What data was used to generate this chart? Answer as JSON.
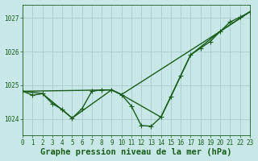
{
  "title": "Graphe pression niveau de la mer (hPa)",
  "bg_color": "#c8e8e8",
  "plot_bg_color": "#c8e8e8",
  "grid_color": "#aacccc",
  "line_color": "#1a5c1a",
  "xlim": [
    0,
    23
  ],
  "ylim": [
    1023.5,
    1027.4
  ],
  "yticks": [
    1024,
    1025,
    1026,
    1027
  ],
  "xticks": [
    0,
    1,
    2,
    3,
    4,
    5,
    6,
    7,
    8,
    9,
    10,
    11,
    12,
    13,
    14,
    15,
    16,
    17,
    18,
    19,
    20,
    21,
    22,
    23
  ],
  "line1_x": [
    0,
    1,
    2,
    3,
    4,
    5,
    6,
    7,
    8,
    9,
    10,
    11,
    12,
    13,
    14,
    15,
    16,
    17,
    18,
    19,
    20,
    21,
    22,
    23
  ],
  "line1_y": [
    1024.82,
    1024.7,
    1024.75,
    1024.45,
    1024.28,
    1024.02,
    1024.3,
    1024.82,
    1024.86,
    1024.86,
    1024.72,
    1024.38,
    1023.8,
    1023.78,
    1024.05,
    1024.65,
    1025.28,
    1025.9,
    1026.1,
    1026.3,
    1026.6,
    1026.88,
    1027.02,
    1027.18
  ],
  "line2_x": [
    0,
    2,
    5,
    9,
    10,
    14,
    17,
    20,
    23
  ],
  "line2_y": [
    1024.82,
    1024.75,
    1024.02,
    1024.86,
    1024.72,
    1024.05,
    1025.9,
    1026.6,
    1027.18
  ],
  "line3_x": [
    0,
    9,
    10,
    20,
    23
  ],
  "line3_y": [
    1024.82,
    1024.86,
    1024.72,
    1026.6,
    1027.18
  ],
  "marker_size": 3.5,
  "line_width": 1.0,
  "font_color": "#1a5c1a",
  "tick_label_size": 5.5,
  "xlabel_size": 7.5
}
